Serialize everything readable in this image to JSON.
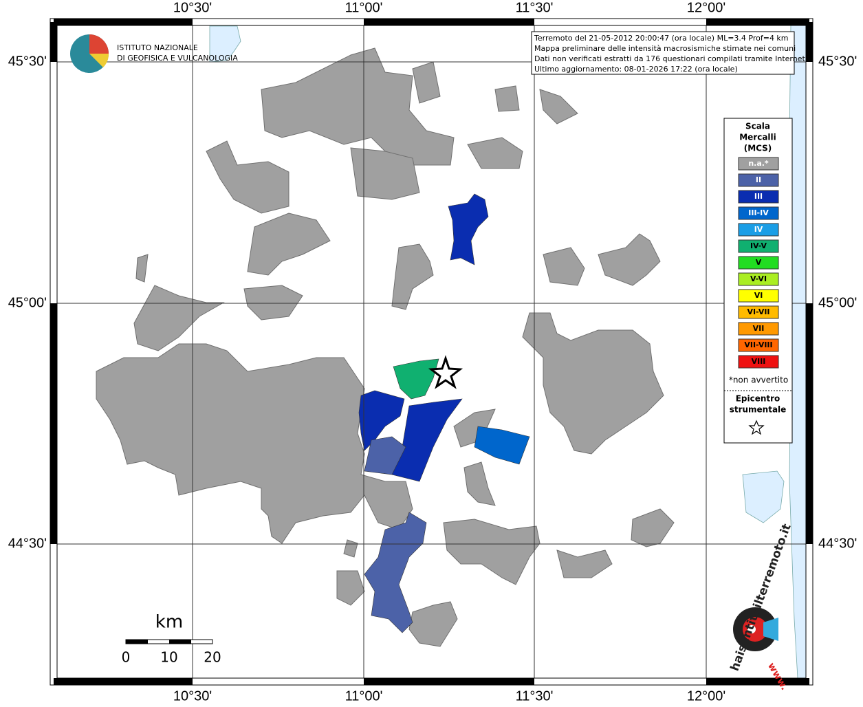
{
  "map": {
    "lon_labels": [
      "10°30'",
      "11°00'",
      "11°30'",
      "12°00'"
    ],
    "lat_labels": [
      "45°30'",
      "45°00'",
      "44°30'"
    ],
    "logo": {
      "line1": "ISTITUTO NAZIONALE",
      "line2": "DI GEOFISICA E VULCANOLOGIA"
    },
    "info": [
      "Terremoto del 21-05-2012 20:00:47 (ora locale) ML=3.4 Prof=4 km",
      "Mappa preliminare delle intensità macrosismiche stimate nei comuni",
      "Dati non verificati estratti da 176 questionari compilati tramite Internet.",
      "Ultimo aggiornamento: 08-01-2026 17:22 (ora locale)"
    ],
    "legend": {
      "title": [
        "Scala",
        "Mercalli",
        "(MCS)"
      ],
      "items": [
        {
          "label": "n.a.*",
          "color": "#a0a0a0"
        },
        {
          "label": "II",
          "color": "#4c62a8"
        },
        {
          "label": "III",
          "color": "#0a2db0"
        },
        {
          "label": "III-IV",
          "color": "#0066cc"
        },
        {
          "label": "IV",
          "color": "#1a9ee6"
        },
        {
          "label": "IV-V",
          "color": "#10b070"
        },
        {
          "label": "V",
          "color": "#22dd22"
        },
        {
          "label": "V-VI",
          "color": "#aaee22"
        },
        {
          "label": "VI",
          "color": "#ffff00"
        },
        {
          "label": "VI-VII",
          "color": "#ffbb00"
        },
        {
          "label": "VII",
          "color": "#ff9900"
        },
        {
          "label": "VII-VIII",
          "color": "#ff6600"
        },
        {
          "label": "VIII",
          "color": "#ee1111"
        }
      ],
      "note": "*non avvertito",
      "epicenter": [
        "Epicentro",
        "strumentale"
      ]
    },
    "scale": {
      "unit": "km",
      "ticks": [
        "0",
        "10",
        "20"
      ]
    },
    "badge": {
      "site": "haisentitoilterremoto.it",
      "www": "www."
    }
  }
}
